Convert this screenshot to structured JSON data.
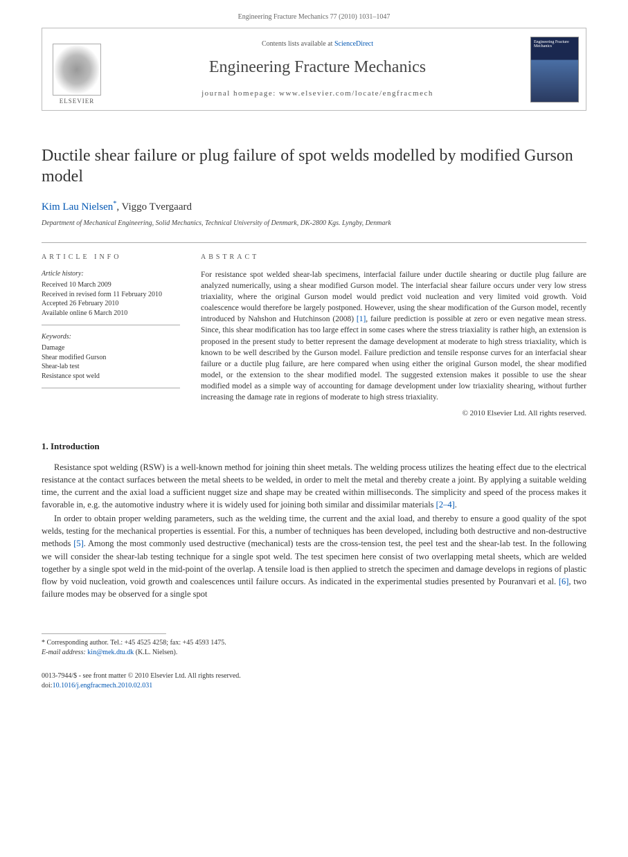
{
  "header": {
    "citation": "Engineering Fracture Mechanics 77 (2010) 1031–1047"
  },
  "banner": {
    "publisher": "ELSEVIER",
    "contents_prefix": "Contents lists available at ",
    "contents_link": "ScienceDirect",
    "journal": "Engineering Fracture Mechanics",
    "homepage_prefix": "journal homepage: ",
    "homepage_url": "www.elsevier.com/locate/engfracmech",
    "cover_text": "Engineering Fracture Mechanics"
  },
  "article": {
    "title": "Ductile shear failure or plug failure of spot welds modelled by modified Gurson model",
    "authors_html": "Kim Lau Nielsen",
    "author_link": "*",
    "author2": ", Viggo Tvergaard",
    "affiliation": "Department of Mechanical Engineering, Solid Mechanics, Technical University of Denmark, DK-2800 Kgs. Lyngby, Denmark"
  },
  "info": {
    "heading": "ARTICLE INFO",
    "history_title": "Article history:",
    "history": [
      "Received 10 March 2009",
      "Received in revised form 11 February 2010",
      "Accepted 26 February 2010",
      "Available online 6 March 2010"
    ],
    "keywords_title": "Keywords:",
    "keywords": [
      "Damage",
      "Shear modified Gurson",
      "Shear-lab test",
      "Resistance spot weld"
    ]
  },
  "abstract": {
    "heading": "ABSTRACT",
    "text_before_ref": "For resistance spot welded shear-lab specimens, interfacial failure under ductile shearing or ductile plug failure are analyzed numerically, using a shear modified Gurson model. The interfacial shear failure occurs under very low stress triaxiality, where the original Gurson model would predict void nucleation and very limited void growth. Void coalescence would therefore be largely postponed. However, using the shear modification of the Gurson model, recently introduced by Nahshon and Hutchinson (2008) ",
    "ref1": "[1]",
    "text_after_ref": ", failure prediction is possible at zero or even negative mean stress. Since, this shear modification has too large effect in some cases where the stress triaxiality is rather high, an extension is proposed in the present study to better represent the damage development at moderate to high stress triaxiality, which is known to be well described by the Gurson model. Failure prediction and tensile response curves for an interfacial shear failure or a ductile plug failure, are here compared when using either the original Gurson model, the shear modified model, or the extension to the shear modified model. The suggested extension makes it possible to use the shear modified model as a simple way of accounting for damage development under low triaxiality shearing, without further increasing the damage rate in regions of moderate to high stress triaxiality.",
    "copyright": "© 2010 Elsevier Ltd. All rights reserved."
  },
  "sections": {
    "intro_heading": "1. Introduction",
    "para1_a": "Resistance spot welding (RSW) is a well-known method for joining thin sheet metals. The welding process utilizes the heating effect due to the electrical resistance at the contact surfaces between the metal sheets to be welded, in order to melt the metal and thereby create a joint. By applying a suitable welding time, the current and the axial load a sufficient nugget size and shape may be created within milliseconds. The simplicity and speed of the process makes it favorable in, e.g. the automotive industry where it is widely used for joining both similar and dissimilar materials ",
    "para1_ref": "[2–4]",
    "para1_b": ".",
    "para2_a": "In order to obtain proper welding parameters, such as the welding time, the current and the axial load, and thereby to ensure a good quality of the spot welds, testing for the mechanical properties is essential. For this, a number of techniques has been developed, including both destructive and non-destructive methods ",
    "para2_ref1": "[5]",
    "para2_b": ". Among the most commonly used destructive (mechanical) tests are the cross-tension test, the peel test and the shear-lab test. In the following we will consider the shear-lab testing technique for a single spot weld. The test specimen here consist of two overlapping metal sheets, which are welded together by a single spot weld in the mid-point of the overlap. A tensile load is then applied to stretch the specimen and damage develops in regions of plastic flow by void nucleation, void growth and coalescences until failure occurs. As indicated in the experimental studies presented by Pouranvari et al. ",
    "para2_ref2": "[6]",
    "para2_c": ", two failure modes may be observed for a single spot"
  },
  "footnotes": {
    "corr": "* Corresponding author. Tel.: +45 4525 4258; fax: +45 4593 1475.",
    "email_label": "E-mail address: ",
    "email": "kin@mek.dtu.dk",
    "email_name": " (K.L. Nielsen)."
  },
  "bottom": {
    "issn": "0013-7944/$ - see front matter © 2010 Elsevier Ltd. All rights reserved.",
    "doi_label": "doi:",
    "doi": "10.1016/j.engfracmech.2010.02.031"
  },
  "colors": {
    "link": "#0056b3",
    "text": "#333333",
    "border": "#aaaaaa"
  }
}
